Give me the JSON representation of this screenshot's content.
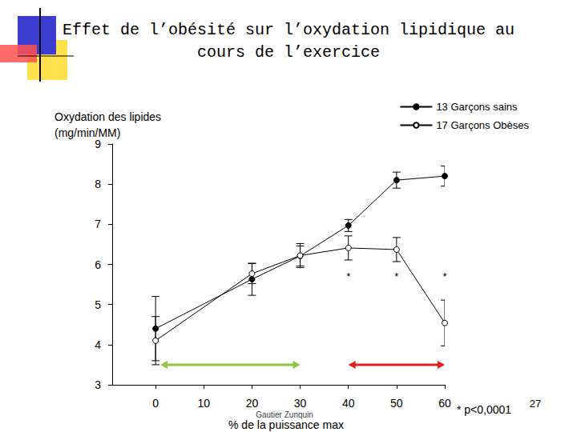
{
  "chart_data": {
    "type": "line",
    "title": "Effet de l’obésité sur l’oxydation lipidique au\ncours de l’exercice",
    "y_label": "Oxydation des lipides\n(mg/min/MM)",
    "x_label": "% de la puissance max",
    "x": [
      0,
      20,
      30,
      40,
      50,
      60
    ],
    "series": [
      {
        "name": "13 Garçons sains",
        "color": "#000000",
        "marker": "filled_circle",
        "values": [
          4.4,
          5.63,
          6.21,
          6.97,
          8.1,
          8.2
        ],
        "errors": [
          0.8,
          0.4,
          0.25,
          0.15,
          0.2,
          0.25
        ]
      },
      {
        "name": "17 Garçons Obèses",
        "color": "#000000",
        "marker": "open_circle",
        "values": [
          4.1,
          5.77,
          6.22,
          6.41,
          6.37,
          4.54
        ],
        "errors": [
          0.6,
          0.25,
          0.3,
          0.3,
          0.3,
          0.57
        ]
      }
    ],
    "xlim": [
      -9,
      60
    ],
    "xticks": [
      0,
      10,
      20,
      30,
      40,
      50,
      60
    ],
    "ylim": [
      3,
      9
    ],
    "yticks": [
      3,
      4,
      5,
      6,
      7,
      8,
      9
    ],
    "grid": false,
    "legend": "top-right",
    "annotations": [
      {
        "text": "*",
        "x": 40,
        "y": 5.7
      },
      {
        "text": "*",
        "x": 50,
        "y": 5.7
      },
      {
        "text": "*",
        "x": 60,
        "y": 5.7
      }
    ],
    "ranges": [
      {
        "from": 1,
        "to": 30,
        "y": 3.5,
        "color": "#8dc63f"
      },
      {
        "from": 40,
        "to": 60,
        "y": 3.5,
        "color": "#e02020"
      }
    ],
    "footnote": "* p<0,0001",
    "credit": "Gautier Zunquin",
    "page_number": "27"
  }
}
